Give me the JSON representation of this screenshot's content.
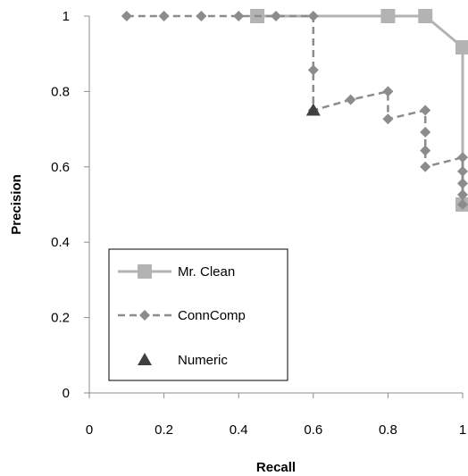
{
  "chart_data": {
    "type": "line",
    "title": "",
    "xlabel": "Recall",
    "ylabel": "Precision",
    "xlim": [
      0,
      1
    ],
    "ylim": [
      0,
      1
    ],
    "x_ticks": [
      0,
      0.2,
      0.4,
      0.6,
      0.8,
      1
    ],
    "x_tick_labels": [
      "0",
      "0.2",
      "0.4",
      "0.6",
      "0.8",
      "1"
    ],
    "y_ticks": [
      0,
      0.2,
      0.4,
      0.6,
      0.8,
      1
    ],
    "y_tick_labels": [
      "0",
      "0.2",
      "0.4",
      "0.6",
      "0.8",
      "1"
    ],
    "grid": false,
    "legend_position": "bottom-left",
    "series": [
      {
        "name": "Mr. Clean",
        "marker": "square",
        "line_style": "solid",
        "color": "#B3B3B3",
        "points": [
          [
            0.45,
            1.0
          ],
          [
            0.8,
            1.0
          ],
          [
            0.9,
            1.0
          ],
          [
            1.0,
            0.917
          ],
          [
            1.0,
            0.5
          ]
        ]
      },
      {
        "name": "ConnComp",
        "marker": "diamond",
        "line_style": "dashed",
        "color": "#8C8C8C",
        "points": [
          [
            0.1,
            1.0
          ],
          [
            0.2,
            1.0
          ],
          [
            0.3,
            1.0
          ],
          [
            0.4,
            1.0
          ],
          [
            0.5,
            1.0
          ],
          [
            0.6,
            1.0
          ],
          [
            0.6,
            0.857
          ],
          [
            0.6,
            0.75
          ],
          [
            0.7,
            0.778
          ],
          [
            0.8,
            0.8
          ],
          [
            0.8,
            0.727
          ],
          [
            0.9,
            0.75
          ],
          [
            0.9,
            0.692
          ],
          [
            0.9,
            0.643
          ],
          [
            0.9,
            0.6
          ],
          [
            1.0,
            0.625
          ],
          [
            1.0,
            0.588
          ],
          [
            1.0,
            0.556
          ],
          [
            1.0,
            0.526
          ],
          [
            1.0,
            0.5
          ]
        ]
      },
      {
        "name": "Numeric",
        "marker": "triangle",
        "line_style": "none",
        "color": "#404040",
        "points": [
          [
            0.6,
            0.75
          ]
        ]
      }
    ]
  }
}
